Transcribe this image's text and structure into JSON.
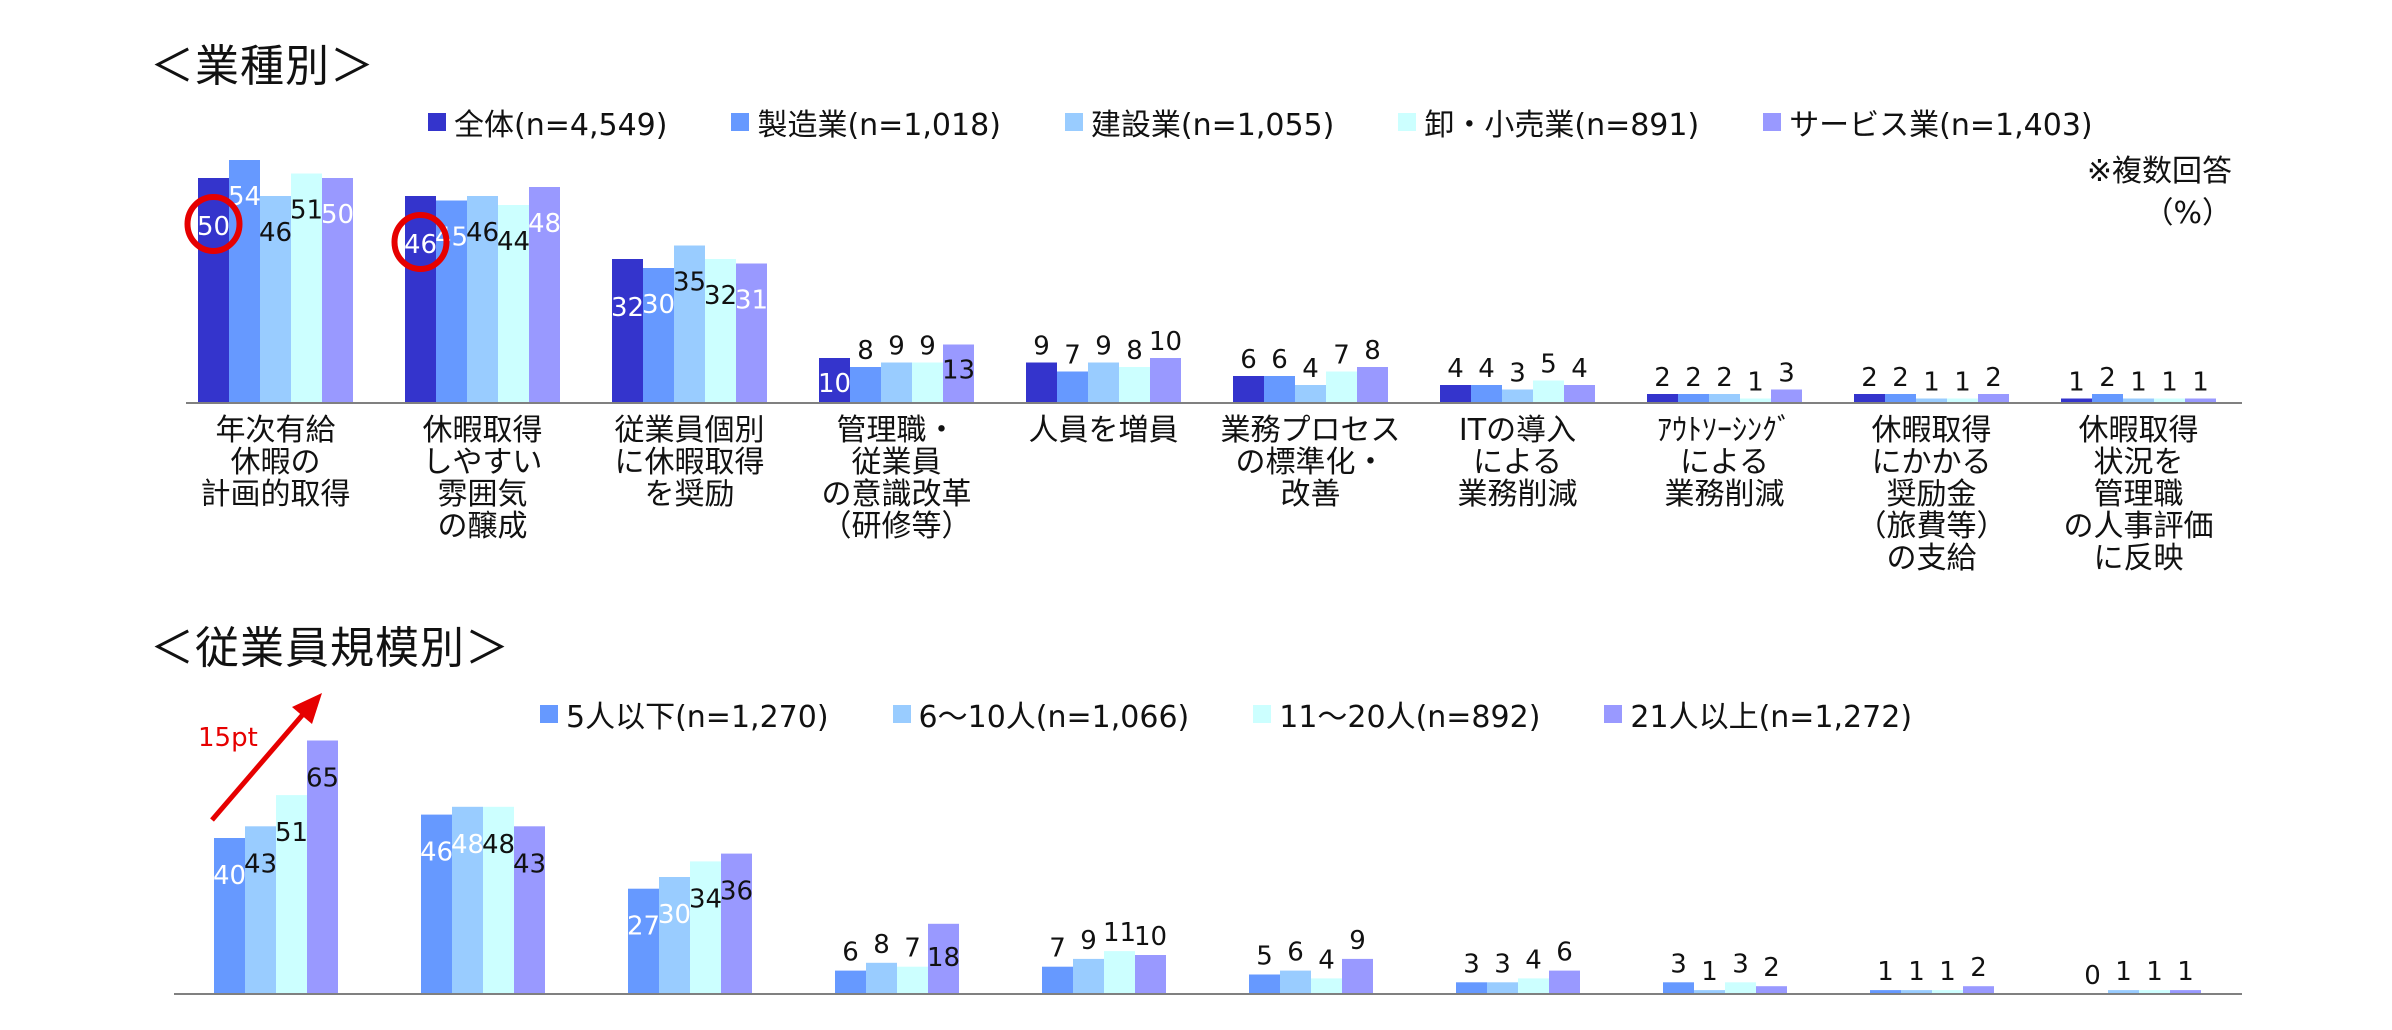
{
  "colors": {
    "overall": "#3434cc",
    "series_a": "#6699ff",
    "series_b": "#99ccff",
    "series_c": "#ccffff",
    "series_d": "#9999ff",
    "highlight": "#e60000",
    "axis": "#808080"
  },
  "section1": {
    "title": "＜業種別＞",
    "note_line1": "※複数回答",
    "note_line2": "（%）",
    "chart_data": {
      "type": "bar",
      "categories": [
        [
          "年次有給",
          "休暇の",
          "計画的取得"
        ],
        [
          "休暇取得",
          "しやすい",
          "雰囲気",
          "の醸成"
        ],
        [
          "従業員個別",
          "に休暇取得",
          "を奨励"
        ],
        [
          "管理職・",
          "従業員",
          "の意識改革",
          "（研修等）"
        ],
        [
          "人員を増員"
        ],
        [
          "業務プロセス",
          "の標準化・",
          "改善"
        ],
        [
          "ITの導入",
          "による",
          "業務削減"
        ],
        [
          "ｱｳﾄｿｰｼﾝｸﾞ",
          "による",
          "業務削減"
        ],
        [
          "休暇取得",
          "にかかる",
          "奨励金",
          "（旅費等）",
          "の支給"
        ],
        [
          "休暇取得",
          "状況を",
          "管理職",
          "の人事評価",
          "に反映"
        ]
      ],
      "series": [
        {
          "name": "全体(n=4,549)",
          "values": [
            50,
            46,
            32,
            10,
            9,
            6,
            4,
            2,
            2,
            1
          ]
        },
        {
          "name": "製造業(n=1,018)",
          "values": [
            54,
            45,
            30,
            8,
            7,
            6,
            4,
            2,
            2,
            2
          ]
        },
        {
          "name": "建設業(n=1,055)",
          "values": [
            46,
            46,
            35,
            9,
            9,
            4,
            3,
            2,
            1,
            1
          ]
        },
        {
          "name": "卸・小売業(n=891)",
          "values": [
            51,
            44,
            32,
            9,
            8,
            7,
            5,
            1,
            1,
            1
          ]
        },
        {
          "name": "サービス業(n=1,403)",
          "values": [
            50,
            48,
            31,
            13,
            10,
            8,
            4,
            3,
            2,
            1
          ]
        }
      ],
      "ylim": [
        0,
        60
      ]
    }
  },
  "section2": {
    "title": "＜従業員規模別＞",
    "annotation": "15pt",
    "chart_data": {
      "type": "bar",
      "series": [
        {
          "name": "5人以下(n=1,270)",
          "values": [
            40,
            46,
            27,
            6,
            7,
            5,
            3,
            3,
            1,
            0
          ]
        },
        {
          "name": "6～10人(n=1,066)",
          "values": [
            43,
            48,
            30,
            8,
            9,
            6,
            3,
            1,
            1,
            1
          ]
        },
        {
          "name": "11～20人(n=892)",
          "values": [
            51,
            48,
            34,
            7,
            11,
            4,
            4,
            3,
            1,
            1
          ]
        },
        {
          "name": "21人以上(n=1,272)",
          "values": [
            65,
            43,
            36,
            18,
            10,
            9,
            6,
            2,
            2,
            1
          ]
        }
      ],
      "ylim": [
        0,
        75
      ]
    }
  }
}
